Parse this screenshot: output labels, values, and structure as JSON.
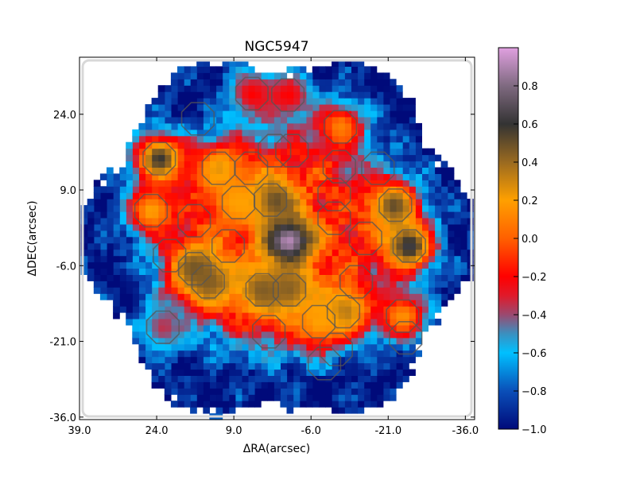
{
  "chart_data": {
    "type": "heatmap",
    "title": "NGC5947",
    "xlabel": "ΔRA(arcsec)",
    "ylabel": "ΔDEC(arcsec)",
    "xlim": [
      39.0,
      -37.8
    ],
    "ylim": [
      -36.5,
      35.3
    ],
    "xticks": [
      "39.0",
      "24.0",
      "9.0",
      "-6.0",
      "-21.0",
      "-36.0"
    ],
    "xtick_values": [
      39,
      24,
      9,
      -6,
      -21,
      -36
    ],
    "yticks": [
      "24.0",
      "9.0",
      "-6.0",
      "-21.0",
      "-36.0"
    ],
    "ytick_values": [
      24,
      9,
      -6,
      -21,
      -36
    ],
    "colorbar": {
      "range": [
        -1.0,
        1.0
      ],
      "ticks": [
        "0.8",
        "0.6",
        "0.4",
        "0.2",
        "0.0",
        "−0.2",
        "−0.4",
        "−0.6",
        "−0.8",
        "−1.0"
      ],
      "tick_values": [
        0.8,
        0.6,
        0.4,
        0.2,
        0.0,
        -0.2,
        -0.4,
        -0.6,
        -0.8,
        -1.0
      ],
      "colormap": [
        [
          -1.0,
          "#000a7a"
        ],
        [
          -0.8,
          "#0a4fb8"
        ],
        [
          -0.6,
          "#00c0ff"
        ],
        [
          -0.5,
          "#3a90c0"
        ],
        [
          -0.4,
          "#9a4a70"
        ],
        [
          -0.3,
          "#e01a2a"
        ],
        [
          -0.2,
          "#ff0000"
        ],
        [
          0.0,
          "#ff6000"
        ],
        [
          0.2,
          "#ffa000"
        ],
        [
          0.4,
          "#9a6a20"
        ],
        [
          0.6,
          "#333333"
        ],
        [
          0.8,
          "#7f6a80"
        ],
        [
          1.0,
          "#e0a0e0"
        ]
      ]
    },
    "map_center": [
      0.0,
      -0.6
    ],
    "map_radius": 36,
    "hotspots": [
      {
        "x": -1.5,
        "y": -1.0,
        "value": 0.95
      },
      {
        "x": 23.5,
        "y": 15.2,
        "value": 0.6
      },
      {
        "x": 1.5,
        "y": 7.0,
        "value": 0.55
      },
      {
        "x": -22.0,
        "y": 6.0,
        "value": 0.5
      },
      {
        "x": -25.0,
        "y": -2.1,
        "value": 0.65
      },
      {
        "x": 16.6,
        "y": -6.6,
        "value": 0.5
      },
      {
        "x": 14.0,
        "y": -9.2,
        "value": 0.45
      },
      {
        "x": 3.5,
        "y": -10.8,
        "value": 0.45
      },
      {
        "x": -1.8,
        "y": -10.8,
        "value": 0.45
      },
      {
        "x": -12.3,
        "y": -15.1,
        "value": 0.4
      },
      {
        "x": -23.8,
        "y": -16.0,
        "value": 0.15
      },
      {
        "x": 12.0,
        "y": 13.3,
        "value": 0.25
      },
      {
        "x": 25.1,
        "y": 4.9,
        "value": 0.2
      },
      {
        "x": 8.1,
        "y": 6.5,
        "value": 0.2
      },
      {
        "x": -7.5,
        "y": -17.1,
        "value": 0.2
      },
      {
        "x": -11.7,
        "y": 21.5,
        "value": 0.1
      },
      {
        "x": 5.5,
        "y": 28.1,
        "value": -0.2
      },
      {
        "x": -1.5,
        "y": 27.8,
        "value": -0.2
      },
      {
        "x": 22.8,
        "y": -18.2,
        "value": -0.35
      }
    ],
    "apertures": [
      [
        5.5,
        28.1
      ],
      [
        -1.5,
        27.8
      ],
      [
        16,
        23.1
      ],
      [
        -11.7,
        21.5
      ],
      [
        23.5,
        15.2
      ],
      [
        12,
        13.3
      ],
      [
        5.6,
        13.3
      ],
      [
        1.1,
        16.8
      ],
      [
        -2.3,
        16.8
      ],
      [
        -11.5,
        13.6
      ],
      [
        -19,
        13.3
      ],
      [
        1.9,
        7
      ],
      [
        8.1,
        6.5
      ],
      [
        -10.5,
        8.1
      ],
      [
        -10.5,
        3.4
      ],
      [
        -22.4,
        6
      ],
      [
        25.1,
        4.9
      ],
      [
        16.7,
        2.9
      ],
      [
        10.1,
        -2.1
      ],
      [
        -16.6,
        -0.6
      ],
      [
        -25.1,
        -2.1
      ],
      [
        21.5,
        -4
      ],
      [
        16.6,
        -6.6
      ],
      [
        14,
        -9.2
      ],
      [
        -14.8,
        -9.2
      ],
      [
        3.5,
        -10.8
      ],
      [
        -1.8,
        -10.8
      ],
      [
        -7.5,
        -17.1
      ],
      [
        -12.3,
        -15.1
      ],
      [
        2.2,
        -19.1
      ],
      [
        -23.8,
        -16
      ],
      [
        -24.4,
        -20.3
      ],
      [
        22.8,
        -18.2
      ],
      [
        -10.9,
        -22.6
      ],
      [
        -8.6,
        -25.4
      ]
    ]
  }
}
